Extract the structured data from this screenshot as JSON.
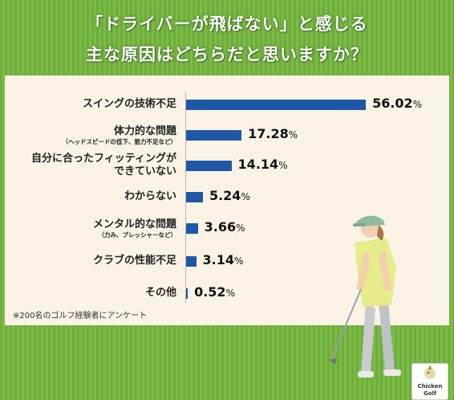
{
  "title_line1": "「ドライバーが飛ばない」と感じる",
  "title_line2": "主な原因はどちらだと思いますか？",
  "footnote": "※200名のゴルフ経験者にアンケート",
  "logo": {
    "line1": "Chicken",
    "line2": "Golf"
  },
  "percent_sign": "%",
  "chart_data": {
    "type": "bar",
    "orientation": "horizontal",
    "title": "主な原因はどちらだと思いますか？",
    "categories": [
      "スイングの技術不足",
      "体力的な問題",
      "自分に合ったフィッティングができていない",
      "わからない",
      "メンタル的な問題",
      "クラブの性能不足",
      "その他"
    ],
    "category_lines": [
      [
        "スイングの技術不足"
      ],
      [
        "体力的な問題"
      ],
      [
        "自分に合ったフィッティングが",
        "できていない"
      ],
      [
        "わからない"
      ],
      [
        "メンタル的な問題"
      ],
      [
        "クラブの性能不足"
      ],
      [
        "その他"
      ]
    ],
    "category_notes": [
      "",
      "（ヘッドスピードの低下、筋力不足など）",
      "",
      "",
      "（力み、プレッシャーなど）",
      "",
      ""
    ],
    "values": [
      56.02,
      17.28,
      14.14,
      5.24,
      3.66,
      3.14,
      0.52
    ],
    "value_labels": [
      "56.02",
      "17.28",
      "14.14",
      "5.24",
      "3.66",
      "3.14",
      "0.52"
    ],
    "unit": "%",
    "xlim": [
      0,
      60
    ],
    "bar_color": "#1f57a7",
    "grid": false,
    "legend": "none"
  },
  "colors": {
    "background_grass": "#74b440",
    "panel": "#fbf4e6",
    "bar": "#1f57a7"
  }
}
